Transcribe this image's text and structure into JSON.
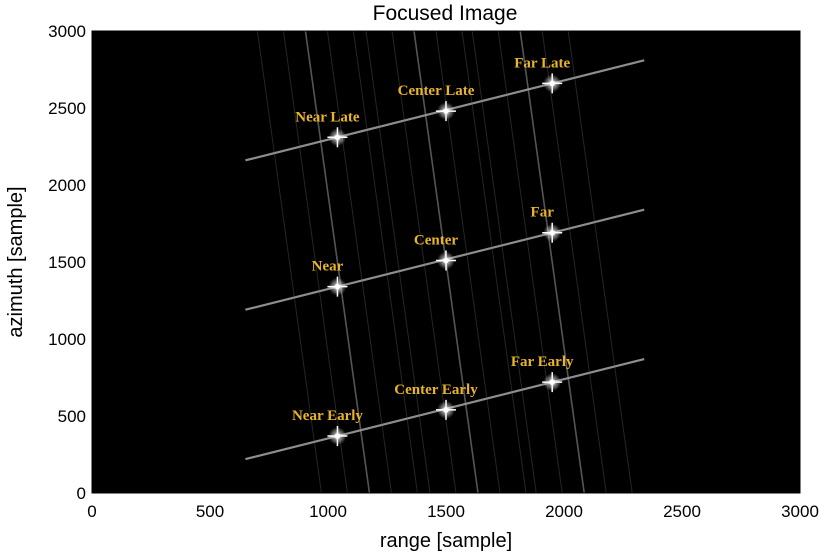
{
  "chart_data": {
    "type": "image",
    "title": "Focused Image",
    "xlabel": "range [sample]",
    "ylabel": "azimuth [sample]",
    "xlim": [
      0,
      3000
    ],
    "ylim": [
      0,
      3000
    ],
    "xticks": [
      "0",
      "500",
      "1000",
      "1500",
      "2000",
      "2500",
      "3000"
    ],
    "yticks": [
      "0",
      "500",
      "1000",
      "1500",
      "2000",
      "2500",
      "3000"
    ],
    "background_color": "#000000",
    "label_color": "#e8b428",
    "targets": [
      {
        "name": "Near Late",
        "x": 1040,
        "y": 2310
      },
      {
        "name": "Center Late",
        "x": 1500,
        "y": 2480
      },
      {
        "name": "Far Late",
        "x": 1950,
        "y": 2660
      },
      {
        "name": "Near",
        "x": 1040,
        "y": 1340
      },
      {
        "name": "Center",
        "x": 1500,
        "y": 1510
      },
      {
        "name": "Far",
        "x": 1950,
        "y": 1690
      },
      {
        "name": "Near Early",
        "x": 1040,
        "y": 370
      },
      {
        "name": "Center Early",
        "x": 1500,
        "y": 540
      },
      {
        "name": "Far Early",
        "x": 1950,
        "y": 720
      }
    ]
  }
}
